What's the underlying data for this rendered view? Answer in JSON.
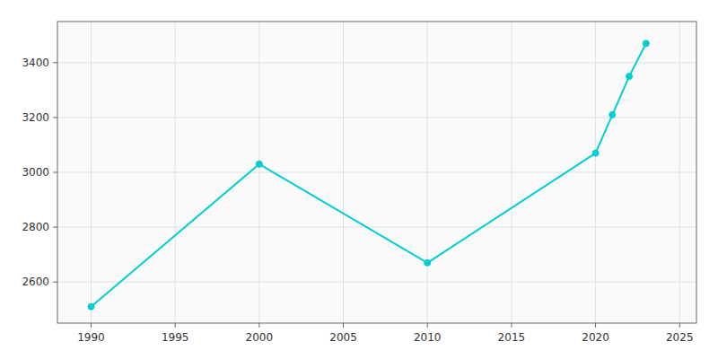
{
  "chart_data": {
    "type": "line",
    "x": [
      1990,
      2000,
      2010,
      2020,
      2021,
      2022,
      2023
    ],
    "values": [
      2510,
      3030,
      2670,
      3070,
      3210,
      3350,
      3470
    ],
    "color": "#00CED1",
    "marker": "circle",
    "xlim": [
      1988,
      2026
    ],
    "ylim": [
      2450,
      3550
    ],
    "xticks": [
      1990,
      1995,
      2000,
      2005,
      2010,
      2015,
      2020,
      2025
    ],
    "yticks": [
      2600,
      2800,
      3000,
      3200,
      3400
    ],
    "grid": true
  }
}
